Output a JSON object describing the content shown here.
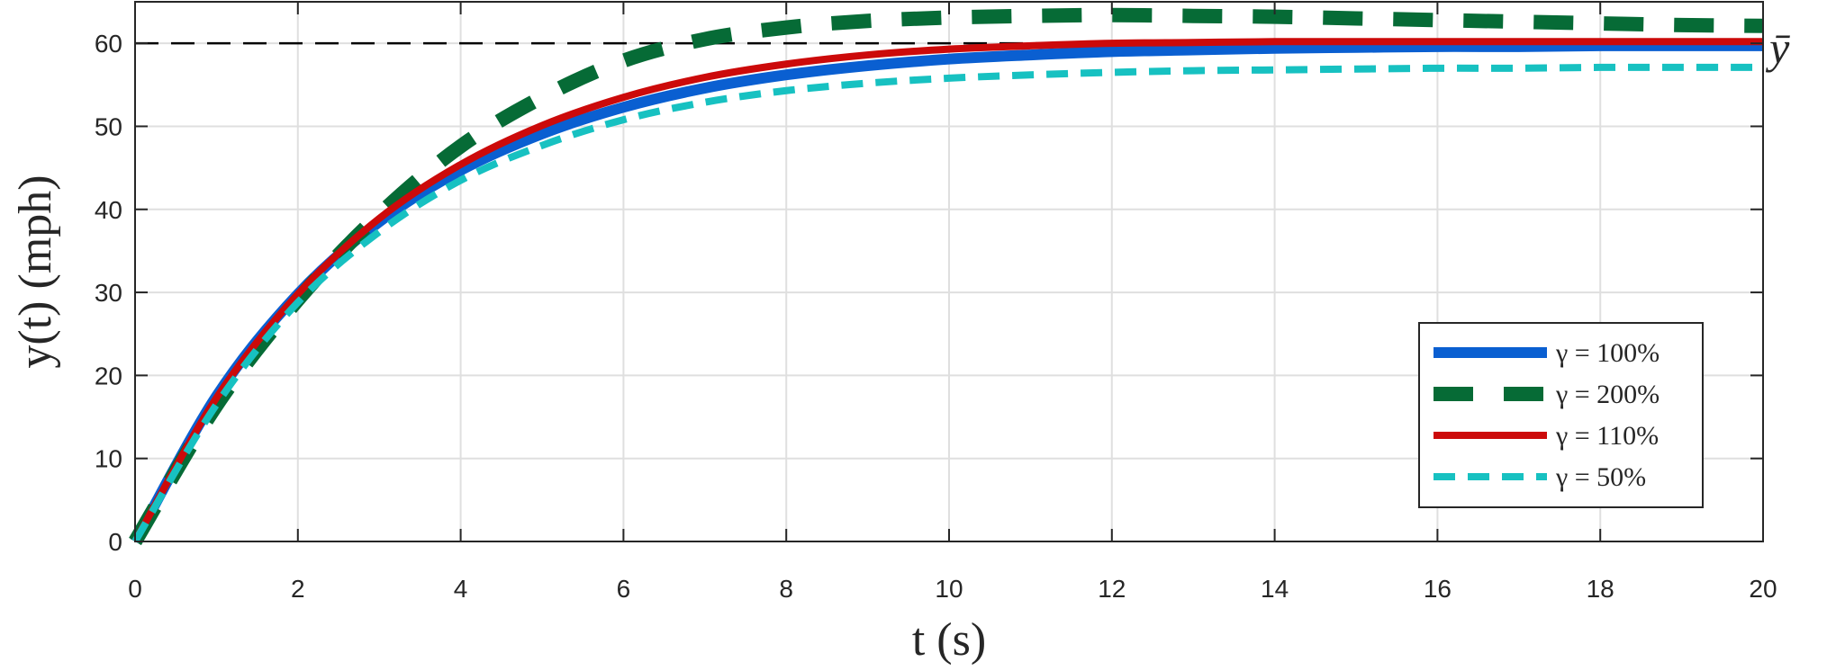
{
  "chart_data": {
    "type": "line",
    "xlabel": "t (s)",
    "ylabel": "y(t) (mph)",
    "xlim": [
      0,
      20
    ],
    "ylim": [
      0,
      65
    ],
    "xticks": [
      0,
      2,
      4,
      6,
      8,
      10,
      12,
      14,
      16,
      18,
      20
    ],
    "yticks": [
      0,
      10,
      20,
      30,
      40,
      50,
      60
    ],
    "xtick_labels": [
      "0",
      "2",
      "4",
      "6",
      "8",
      "10",
      "12",
      "14",
      "16",
      "18",
      "20"
    ],
    "ytick_labels": [
      "0",
      "10",
      "20",
      "30",
      "40",
      "50",
      "60"
    ],
    "grid": true,
    "legend_position": "bottom-right",
    "reference_line": {
      "label": "ȳ",
      "value": 60,
      "color": "#000000",
      "style": "dashed"
    },
    "x": [
      0,
      1,
      2,
      3,
      4,
      5,
      6,
      7,
      8,
      9,
      10,
      11,
      12,
      13,
      14,
      15,
      16,
      17,
      18,
      19,
      20
    ],
    "series": [
      {
        "name": "γ = 100%",
        "color": "#0a5fd1",
        "style": "solid",
        "values": [
          0,
          17.5,
          29.8,
          38.5,
          44.7,
          49.1,
          52.3,
          54.6,
          56.2,
          57.3,
          58.1,
          58.6,
          59.0,
          59.2,
          59.4,
          59.5,
          59.6,
          59.6,
          59.7,
          59.7,
          59.7
        ]
      },
      {
        "name": "γ = 200%",
        "color": "#066b36",
        "style": "dashed-thick",
        "values": [
          0,
          16.4,
          29.1,
          39.4,
          47.6,
          53.5,
          57.9,
          60.5,
          61.9,
          62.7,
          63.1,
          63.3,
          63.4,
          63.3,
          63.2,
          63.0,
          62.8,
          62.6,
          62.4,
          62.2,
          62.1
        ]
      },
      {
        "name": "γ = 110%",
        "color": "#cc0a0a",
        "style": "solid",
        "values": [
          0,
          17.3,
          29.8,
          38.9,
          45.4,
          50.1,
          53.5,
          55.9,
          57.5,
          58.6,
          59.3,
          59.7,
          60.0,
          60.1,
          60.2,
          60.2,
          60.2,
          60.2,
          60.2,
          60.2,
          60.2
        ]
      },
      {
        "name": "γ = 50%",
        "color": "#17c1c1",
        "style": "dashed",
        "values": [
          0,
          16.5,
          28.8,
          37.3,
          43.5,
          47.7,
          50.8,
          52.9,
          54.3,
          55.2,
          55.8,
          56.2,
          56.5,
          56.7,
          56.8,
          56.9,
          57.0,
          57.0,
          57.1,
          57.1,
          57.1
        ]
      }
    ]
  }
}
